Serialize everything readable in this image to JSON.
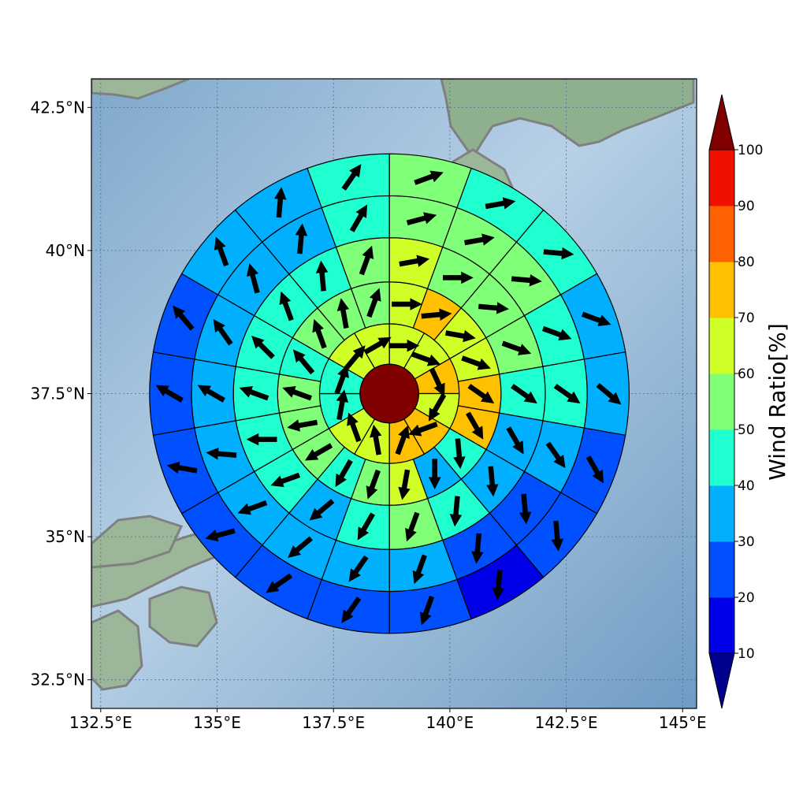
{
  "chart_data": {
    "type": "polar-sector-map",
    "base_map": "Japan shaded relief",
    "x_axis": {
      "ticks": [
        132.5,
        135,
        137.5,
        140,
        142.5,
        145
      ],
      "tick_labels": [
        "132.5°E",
        "135°E",
        "137.5°E",
        "140°E",
        "142.5°E",
        "145°E"
      ],
      "range": [
        132.3,
        145.3
      ]
    },
    "y_axis": {
      "ticks": [
        32.5,
        35,
        37.5,
        40,
        42.5
      ],
      "tick_labels": [
        "32.5°N",
        "35°N",
        "37.5°N",
        "40°N",
        "42.5°N"
      ],
      "range": [
        32.0,
        43.0
      ]
    },
    "grid": true,
    "center": {
      "lon": 138.7,
      "lat": 37.5,
      "value": 100
    },
    "ring_radii_deg": [
      0.63,
      1.5,
      2.4,
      3.35,
      4.25,
      5.15
    ],
    "sector_angles_deg": [
      0,
      20,
      40,
      60,
      80,
      100,
      120,
      140,
      160,
      180,
      200,
      220,
      240,
      260,
      280,
      300,
      320,
      340
    ],
    "ring_values": [
      [
        60,
        60,
        70,
        60,
        70,
        70,
        60,
        60,
        40,
        40,
        60,
        60
      ],
      [
        60,
        70,
        60,
        60,
        70,
        70,
        40,
        30,
        60,
        50,
        40,
        50,
        50,
        50,
        40,
        50,
        50,
        50
      ],
      [
        60,
        50,
        50,
        50,
        40,
        30,
        30,
        40,
        50,
        40,
        30,
        40,
        40,
        40,
        40,
        40,
        40,
        50
      ],
      [
        50,
        50,
        50,
        40,
        40,
        30,
        20,
        20,
        30,
        30,
        30,
        30,
        30,
        30,
        30,
        30,
        30,
        40
      ],
      [
        50,
        40,
        40,
        30,
        30,
        20,
        20,
        10,
        20,
        20,
        20,
        20,
        20,
        20,
        20,
        30,
        30,
        40
      ]
    ],
    "wind_arrows_deg": [
      [
        90,
        110,
        155,
        210,
        250,
        20,
        350,
        340,
        10,
        20,
        40,
        60
      ],
      [
        90,
        85,
        100,
        110,
        125,
        150,
        175,
        180,
        190,
        200,
        210,
        240,
        260,
        290,
        320,
        340,
        350,
        20
      ],
      [
        80,
        90,
        95,
        110,
        125,
        150,
        175,
        185,
        200,
        210,
        230,
        250,
        270,
        290,
        315,
        340,
        355,
        20
      ],
      [
        75,
        80,
        95,
        110,
        125,
        145,
        175,
        185,
        200,
        215,
        230,
        250,
        275,
        300,
        325,
        345,
        5,
        30
      ],
      [
        70,
        80,
        95,
        110,
        130,
        150,
        175,
        185,
        200,
        215,
        235,
        255,
        280,
        300,
        320,
        340,
        5,
        35
      ]
    ],
    "colorbar": {
      "label": "Wind Ratio[%]",
      "ticks": [
        10,
        20,
        30,
        40,
        50,
        60,
        70,
        80,
        90,
        100
      ],
      "colors": [
        "#00008f",
        "#0000e8",
        "#0050ff",
        "#00b0ff",
        "#20ffd0",
        "#80ff78",
        "#d0ff28",
        "#ffc000",
        "#ff6000",
        "#f01000",
        "#800000"
      ],
      "extend": "both"
    }
  }
}
